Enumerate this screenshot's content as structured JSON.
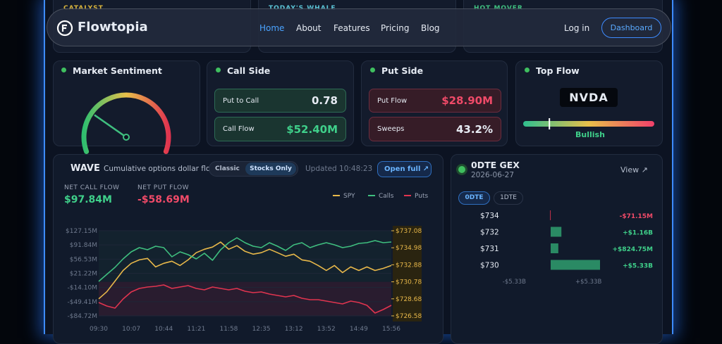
{
  "top_cards": [
    "CATALYST",
    "TODAY'S WHALE",
    "HOT MOVER"
  ],
  "nav": {
    "brand": "Flowtopia",
    "links": [
      "Home",
      "About",
      "Features",
      "Pricing",
      "Blog"
    ],
    "login": "Log in",
    "cta": "Dashboard"
  },
  "sentiment": {
    "title": "Market Sentiment",
    "gauge": {
      "value": 25,
      "min": 0,
      "max": 100
    }
  },
  "call_side": {
    "title": "Call Side",
    "rows": [
      {
        "label": "Put to Call",
        "value": "0.78"
      },
      {
        "label": "Call Flow",
        "value": "$52.40M"
      }
    ]
  },
  "put_side": {
    "title": "Put Side",
    "rows": [
      {
        "label": "Put Flow",
        "value": "$28.90M"
      },
      {
        "label": "Sweeps",
        "value": "43.2%"
      }
    ]
  },
  "top_flow": {
    "title": "Top Flow",
    "ticker": "NVDA",
    "signal": "Bullish",
    "meter": {
      "value": 20,
      "min": 0,
      "max": 100
    }
  },
  "wave": {
    "title": "WAVE",
    "subtitle": "Cumulative options dollar flo",
    "toggle": [
      "Classic",
      "Stocks Only"
    ],
    "updated": "Updated 10:48:23",
    "open": "Open full",
    "stats": [
      {
        "label": "NET CALL FLOW",
        "value": "$97.84M"
      },
      {
        "label": "NET PUT FLOW",
        "value": "-$58.69M"
      }
    ],
    "chart_data": {
      "type": "line",
      "categories": [
        "09:30",
        null,
        null,
        null,
        "10:07",
        null,
        null,
        null,
        "10:44",
        null,
        null,
        null,
        "11:21",
        null,
        null,
        null,
        "11:58",
        null,
        null,
        null,
        "12:35",
        null,
        null,
        null,
        "13:12",
        null,
        null,
        null,
        "13:52",
        null,
        null,
        null,
        "14:49",
        null,
        null,
        null,
        "15:56"
      ],
      "series": [
        {
          "name": "SPY",
          "color": "#e8b84a",
          "axis": "y2",
          "values": [
            728.68,
            729.56,
            730.87,
            732.18,
            733.06,
            733.49,
            733.67,
            732.62,
            733.06,
            733.32,
            732.79,
            733.49,
            734.37,
            734.8,
            735.07,
            735.68,
            734.8,
            735.24,
            734.54,
            734.19,
            734.37,
            734.8,
            734.37,
            733.93,
            734.19,
            733.49,
            733.32,
            732.79,
            732.18,
            732.79,
            731.92,
            732.62,
            732.18,
            732.62,
            732.18,
            732.44,
            732.79
          ]
        },
        {
          "name": "Calls",
          "color": "#3fbf7f",
          "values": [
            1.08,
            18.59,
            36.1,
            57.11,
            74.62,
            85.13,
            79.88,
            88.63,
            85.13,
            62.36,
            74.62,
            67.62,
            57.11,
            71.12,
            53.61,
            79.88,
            97.38,
            109.64,
            97.38,
            88.63,
            85.13,
            97.38,
            88.63,
            78.12,
            92.13,
            97.38,
            85.13,
            92.13,
            97.38,
            92.13,
            85.13,
            88.63,
            95.63,
            97.38,
            102.64,
            97.38,
            99.14
          ]
        },
        {
          "name": "Puts",
          "color": "#e0344f",
          "values": [
            -51.45,
            -60.21,
            -65.46,
            -42.7,
            -25.19,
            -16.43,
            -12.93,
            -11.18,
            -7.68,
            -16.43,
            -12.93,
            -9.43,
            -16.43,
            -19.93,
            -12.93,
            -16.43,
            -19.93,
            -16.43,
            -23.44,
            -26.94,
            -25.19,
            -30.44,
            -33.94,
            -37.44,
            -33.94,
            -40.95,
            -44.45,
            -44.45,
            -47.95,
            -51.45,
            -54.95,
            -47.95,
            -51.45,
            -58.46,
            -77.72,
            -68.96,
            -58.46
          ]
        }
      ],
      "ylim": [
        -84.72,
        127.15
      ],
      "yticks": [
        {
          "value": 127.15,
          "label": "$127.15M"
        },
        {
          "value": 91.84,
          "label": "$91.84M"
        },
        {
          "value": 56.53,
          "label": "$56.53M"
        },
        {
          "value": 21.22,
          "label": "$21.22M"
        },
        {
          "value": -14.1,
          "label": "-$14.10M"
        },
        {
          "value": -49.41,
          "label": "-$49.41M"
        },
        {
          "value": -84.72,
          "label": "-$84.72M"
        }
      ],
      "y2lim": [
        726.58,
        737.08
      ],
      "y2ticks": [
        {
          "value": 737.08,
          "label": "$737.08"
        },
        {
          "value": 734.98,
          "label": "$734.98"
        },
        {
          "value": 732.88,
          "label": "$732.88"
        },
        {
          "value": 730.78,
          "label": "$730.78"
        },
        {
          "value": 728.68,
          "label": "$728.68"
        },
        {
          "value": 726.58,
          "label": "$726.58"
        }
      ]
    }
  },
  "gex": {
    "title": "0DTE GEX",
    "date": "2026-06-27",
    "view": "View",
    "tabs": [
      "0DTE",
      "1DTE"
    ],
    "rows": [
      {
        "strike": "$734",
        "value": -71.15,
        "label": "-$71.15M"
      },
      {
        "strike": "$732",
        "value": 1160,
        "label": "+$1.16B"
      },
      {
        "strike": "$731",
        "value": 824.75,
        "label": "+$824.75M"
      },
      {
        "strike": "$730",
        "value": 5330,
        "label": "+$5.33B"
      }
    ],
    "xlim": [
      -5330,
      5330
    ],
    "xticks": [
      {
        "value": -5330,
        "label": "-$5.33B"
      },
      {
        "value": 5330,
        "label": "+$5.33B"
      }
    ]
  }
}
